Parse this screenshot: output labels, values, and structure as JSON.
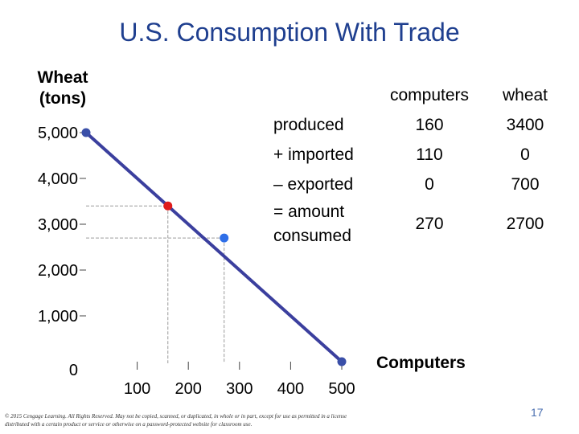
{
  "title": "U.S. Consumption With Trade",
  "chart_data": {
    "type": "line",
    "ylabel": "Wheat (tons)",
    "xlabel": "Computers",
    "y_ticks": [
      5000,
      4000,
      3000,
      2000,
      1000,
      0
    ],
    "y_tick_labels": [
      "5,000",
      "4,000",
      "3,000",
      "2,000",
      "1,000",
      "0"
    ],
    "x_ticks": [
      100,
      200,
      300,
      400,
      500
    ],
    "x_tick_labels": [
      "100",
      "200",
      "300",
      "400",
      "500"
    ],
    "xlim": [
      0,
      500
    ],
    "ylim": [
      0,
      5000
    ],
    "ppf_line": {
      "name": "production possibilities frontier",
      "x": [
        0,
        500
      ],
      "y": [
        5000,
        0
      ]
    },
    "points": [
      {
        "name": "ppf-endpoint-wheat",
        "x": 0,
        "y": 5000,
        "color": "#3a4fa8"
      },
      {
        "name": "production-point",
        "x": 160,
        "y": 3400,
        "color": "#e01c1c"
      },
      {
        "name": "consumption-point",
        "x": 270,
        "y": 2700,
        "color": "#2f6fe8"
      },
      {
        "name": "ppf-endpoint-computers",
        "x": 500,
        "y": 0,
        "color": "#3a4fa8"
      }
    ]
  },
  "table": {
    "headers": [
      "computers",
      "wheat"
    ],
    "rows": [
      {
        "label": "produced",
        "computers": "160",
        "wheat": "3400"
      },
      {
        "label": "+ imported",
        "computers": "110",
        "wheat": "0"
      },
      {
        "label": "– exported",
        "computers": "0",
        "wheat": "700"
      },
      {
        "label": "= amount consumed",
        "computers": "270",
        "wheat": "2700"
      }
    ]
  },
  "footer": "© 2015 Cengage Learning. All Rights Reserved. May not be copied, scanned, or duplicated, in whole or in part, except for use as permitted in a license distributed with a certain product or service or otherwise on a password-protected website for classroom use.",
  "page_number": "17",
  "colors": {
    "title": "#1f3f8f",
    "line": "#3b3f9e",
    "production": "#e01c1c",
    "consumption": "#2f6fe8"
  }
}
